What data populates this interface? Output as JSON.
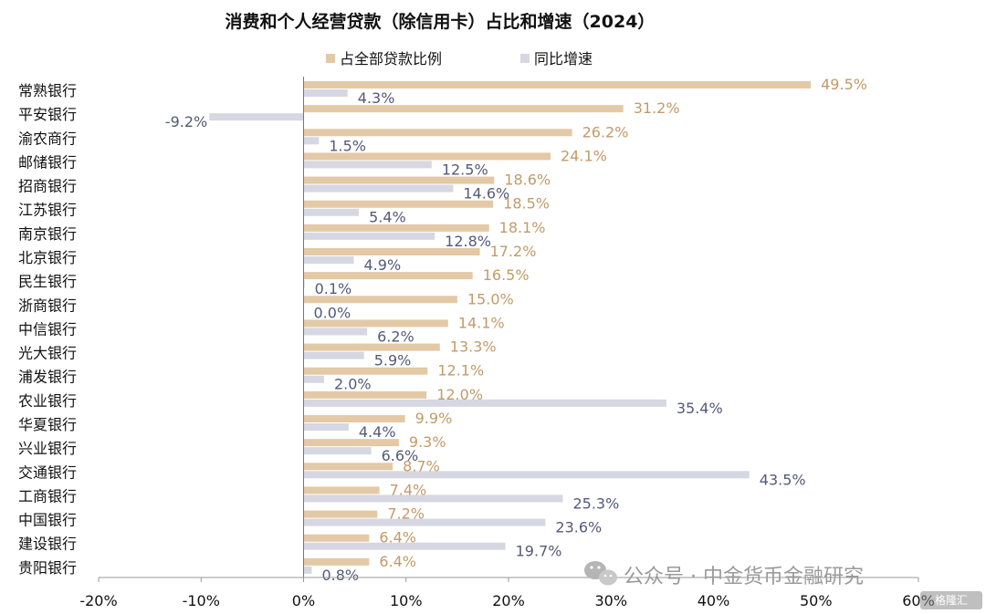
{
  "colors": {
    "share": "#e3c9a6",
    "growth": "#d6d7e2",
    "share_label": "#c39a68",
    "growth_label": "#545a78"
  },
  "chart_data": {
    "type": "bar",
    "orientation": "horizontal",
    "title": "消费和个人经营贷款（除信用卡）占比和增速（2024）",
    "xlim": [
      -20,
      60
    ],
    "xticks": [
      "-20%",
      "-10%",
      "0%",
      "10%",
      "20%",
      "30%",
      "40%",
      "50%",
      "60%"
    ],
    "legend_position": "top",
    "categories": [
      "常熟银行",
      "平安银行",
      "渝农商行",
      "邮储银行",
      "招商银行",
      "江苏银行",
      "南京银行",
      "北京银行",
      "民生银行",
      "浙商银行",
      "中信银行",
      "光大银行",
      "浦发银行",
      "农业银行",
      "华夏银行",
      "兴业银行",
      "交通银行",
      "工商银行",
      "中国银行",
      "建设银行",
      "贵阳银行"
    ],
    "series": [
      {
        "name": "占全部贷款比例",
        "values": [
          49.5,
          31.2,
          26.2,
          24.1,
          18.6,
          18.5,
          18.1,
          17.2,
          16.5,
          15.0,
          14.1,
          13.3,
          12.1,
          12.0,
          9.9,
          9.3,
          8.7,
          7.4,
          7.2,
          6.4,
          6.4
        ],
        "labels": [
          "49.5%",
          "31.2%",
          "26.2%",
          "24.1%",
          "18.6%",
          "18.5%",
          "18.1%",
          "17.2%",
          "16.5%",
          "15.0%",
          "14.1%",
          "13.3%",
          "12.1%",
          "12.0%",
          "9.9%",
          "9.3%",
          "8.7%",
          "7.4%",
          "7.2%",
          "6.4%",
          "6.4%"
        ]
      },
      {
        "name": "同比增速",
        "values": [
          4.3,
          -9.2,
          1.5,
          12.5,
          14.6,
          5.4,
          12.8,
          4.9,
          0.1,
          0.0,
          6.2,
          5.9,
          2.0,
          35.4,
          4.4,
          6.6,
          43.5,
          25.3,
          23.6,
          19.7,
          0.8
        ],
        "labels": [
          "4.3%",
          "-9.2%",
          "1.5%",
          "12.5%",
          "14.6%",
          "5.4%",
          "12.8%",
          "4.9%",
          "0.1%",
          "0.0%",
          "6.2%",
          "5.9%",
          "2.0%",
          "35.4%",
          "4.4%",
          "6.6%",
          "43.5%",
          "25.3%",
          "23.6%",
          "19.7%",
          "0.8%"
        ]
      }
    ]
  },
  "watermark": {
    "text": "公众号 · 中金货币金融研究",
    "badge": "格隆汇"
  }
}
